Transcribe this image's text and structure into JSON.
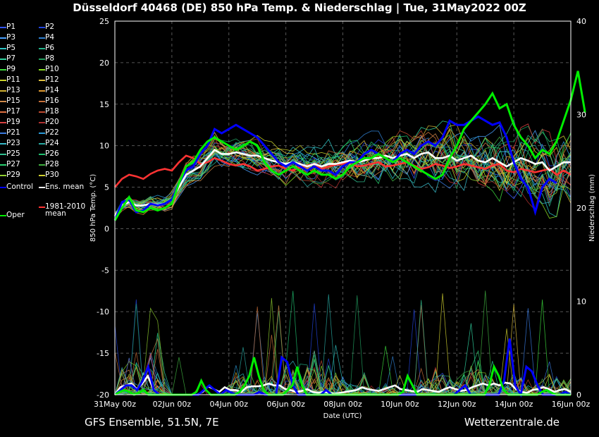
{
  "title": "Düsseldorf 40468 (DE)  850 hPa Temp. & Niederschlag | Tue, 31May2022 00Z",
  "footer": {
    "left": "GFS Ensemble, 51.5N, 7E",
    "right": "Wetterzentrale.de"
  },
  "legend": [
    {
      "label": "P1",
      "color": "#3355ff"
    },
    {
      "label": "P2",
      "color": "#2244dd"
    },
    {
      "label": "P3",
      "color": "#4aa0ff"
    },
    {
      "label": "P4",
      "color": "#2f7fd0"
    },
    {
      "label": "P5",
      "color": "#2ec5c5"
    },
    {
      "label": "P6",
      "color": "#22b38a"
    },
    {
      "label": "P7",
      "color": "#2fd3a0"
    },
    {
      "label": "P8",
      "color": "#22a060"
    },
    {
      "label": "P9",
      "color": "#3cdc3c"
    },
    {
      "label": "P10",
      "color": "#88dd22"
    },
    {
      "label": "P11",
      "color": "#c8d22a"
    },
    {
      "label": "P12",
      "color": "#e0c040"
    },
    {
      "label": "P13",
      "color": "#d0b030"
    },
    {
      "label": "P14",
      "color": "#e09a30"
    },
    {
      "label": "P15",
      "color": "#d08a4a"
    },
    {
      "label": "P16",
      "color": "#c8703a"
    },
    {
      "label": "P17",
      "color": "#e07040"
    },
    {
      "label": "P18",
      "color": "#c04a30"
    },
    {
      "label": "P19",
      "color": "#d84040"
    },
    {
      "label": "P20",
      "color": "#b03030"
    },
    {
      "label": "P21",
      "color": "#3a7ae0"
    },
    {
      "label": "P22",
      "color": "#2a9ad8"
    },
    {
      "label": "P23",
      "color": "#36b8c8"
    },
    {
      "label": "P24",
      "color": "#28a8a0"
    },
    {
      "label": "P25",
      "color": "#30c090"
    },
    {
      "label": "P26",
      "color": "#20c070"
    },
    {
      "label": "P27",
      "color": "#28d070"
    },
    {
      "label": "P28",
      "color": "#40b040"
    },
    {
      "label": "P29",
      "color": "#90d030"
    },
    {
      "label": "P30",
      "color": "#d0d030"
    },
    {
      "label": "Control",
      "color": "#0000ff"
    },
    {
      "label": "Ens. mean",
      "color": "#ffffff"
    },
    {
      "label": "1981-2010\nmean",
      "color": "#ff3333"
    },
    {
      "label": "Oper",
      "color": "#00ee00"
    }
  ],
  "chart_data": {
    "type": "line",
    "xlabel": "Date (UTC)",
    "ylabel_left": "850 hPa Temp. (°C)",
    "ylabel_right": "Niederschlag (mm)",
    "ylim_left": [
      -20,
      25
    ],
    "ylim_right": [
      0,
      40
    ],
    "x_ticks": [
      "31May 00z",
      "02Jun 00z",
      "04Jun 00z",
      "06Jun 00z",
      "08Jun 00z",
      "10Jun 00z",
      "12Jun 00z",
      "14Jun 00z",
      "16Jun 00z"
    ],
    "y_ticks_left": [
      "25",
      "20",
      "15",
      "10",
      "5",
      "0",
      "-5",
      "-10",
      "-15",
      "-20"
    ],
    "y_ticks_right": [
      "40",
      "30",
      "20",
      "10",
      "0"
    ],
    "grid": true,
    "time_step_hours": 6,
    "series": [
      {
        "name": "Control",
        "axis": "left",
        "values": [
          1.0,
          3.2,
          3.5,
          2.0,
          2.2,
          3.0,
          2.8,
          3.0,
          3.5,
          5.5,
          7.0,
          7.5,
          9.0,
          10.0,
          12.0,
          11.5,
          12.0,
          12.5,
          12.0,
          11.5,
          11.0,
          10.0,
          9.0,
          8.0,
          7.5,
          8.0,
          7.5,
          7.0,
          7.5,
          7.0,
          7.0,
          6.5,
          7.5,
          8.0,
          8.0,
          9.0,
          9.5,
          9.0,
          8.5,
          8.0,
          9.0,
          9.5,
          9.0,
          10.0,
          10.5,
          10.0,
          11.0,
          13.0,
          12.5,
          12.5,
          13.0,
          13.5,
          13.0,
          12.5,
          12.8,
          11.0,
          8.0,
          6.0,
          5.0,
          2.0,
          5.0,
          6.0,
          5.5
        ]
      },
      {
        "name": "Oper",
        "axis": "left",
        "values": [
          1.0,
          2.5,
          3.8,
          2.2,
          2.0,
          2.5,
          2.2,
          2.5,
          3.0,
          5.5,
          7.5,
          8.0,
          9.5,
          10.5,
          11.0,
          10.5,
          10.0,
          9.5,
          10.0,
          10.5,
          10.0,
          8.0,
          7.0,
          6.5,
          7.0,
          7.5,
          7.0,
          6.5,
          7.0,
          6.5,
          6.5,
          6.0,
          6.5,
          7.5,
          8.0,
          8.5,
          8.5,
          9.0,
          8.5,
          8.0,
          8.5,
          8.0,
          7.5,
          7.0,
          6.5,
          6.0,
          6.5,
          8.5,
          10.0,
          12.0,
          13.0,
          14.0,
          15.0,
          16.3,
          14.5,
          15.0,
          12.5,
          11.0,
          10.0,
          8.5,
          9.5,
          9.0,
          10.5,
          13.0,
          15.5,
          19.0,
          14.0
        ]
      },
      {
        "name": "Ens. mean",
        "axis": "left",
        "values": [
          1.5,
          2.8,
          3.2,
          2.8,
          2.8,
          3.0,
          2.9,
          3.0,
          3.5,
          5.0,
          6.5,
          7.0,
          7.5,
          8.5,
          9.5,
          9.0,
          9.0,
          9.2,
          9.0,
          8.8,
          8.8,
          8.5,
          8.2,
          8.0,
          7.8,
          8.0,
          7.8,
          7.5,
          7.8,
          7.5,
          7.8,
          7.8,
          8.0,
          8.2,
          8.0,
          8.2,
          8.5,
          8.5,
          8.8,
          8.5,
          8.8,
          9.0,
          8.5,
          9.0,
          9.2,
          8.5,
          8.5,
          8.8,
          8.2,
          8.5,
          8.8,
          8.2,
          8.0,
          8.5,
          8.0,
          7.5,
          8.0,
          8.5,
          8.2,
          7.8,
          8.0,
          7.0,
          7.5,
          8.0,
          8.0
        ]
      },
      {
        "name": "1981-2010\nmean",
        "axis": "left",
        "values": [
          5.0,
          6.0,
          6.5,
          6.3,
          6.0,
          6.6,
          7.0,
          7.2,
          7.0,
          8.0,
          8.8,
          8.5,
          7.8,
          8.0,
          8.5,
          8.2,
          7.8,
          7.6,
          7.8,
          7.5,
          7.0,
          7.2,
          7.5,
          7.6,
          7.2,
          7.0,
          7.4,
          7.6,
          7.8,
          7.2,
          7.5,
          7.7,
          7.8,
          8.0,
          7.5,
          7.6,
          7.8,
          8.0,
          7.5,
          7.6,
          7.8,
          8.0,
          7.6,
          7.2,
          7.4,
          7.8,
          7.6,
          7.3,
          7.5,
          7.8,
          7.6,
          7.4,
          7.2,
          7.6,
          7.8,
          7.0,
          6.8,
          7.2,
          7.0,
          6.8,
          7.0,
          7.2,
          6.5,
          7.0,
          6.5
        ]
      },
      {
        "name": "Control",
        "axis": "right",
        "values": [
          0,
          0.5,
          1.0,
          1.0,
          0.5,
          1.5,
          3.0,
          0.5,
          0,
          0,
          0,
          0,
          0,
          0,
          0,
          0,
          0.5,
          1.0,
          0.5,
          0,
          0.5,
          0.2,
          0,
          0,
          0,
          0,
          0.3,
          0,
          0,
          0,
          4.0,
          3.5,
          1.0,
          0,
          0,
          0,
          0,
          0,
          0.5,
          0,
          0,
          0,
          0,
          0,
          0,
          0,
          0,
          0,
          0,
          0,
          0,
          0,
          0,
          0,
          0,
          0,
          0,
          0,
          0,
          0,
          0,
          0,
          0.5,
          1.0,
          0,
          0,
          0,
          0,
          0,
          0,
          1.5,
          6.0,
          1.0,
          0,
          3.0,
          2.5,
          1.0,
          0,
          0,
          0,
          0,
          0.3,
          0
        ]
      },
      {
        "name": "Oper",
        "axis": "right",
        "values": [
          0,
          0.3,
          0.5,
          0.3,
          0,
          0.2,
          0.5,
          0,
          0,
          0,
          0,
          0,
          0,
          0,
          0,
          0,
          0,
          0.3,
          1.5,
          0.5,
          0,
          0,
          0,
          0,
          0,
          0,
          0.3,
          1.0,
          2.0,
          4.0,
          2.0,
          0.5,
          0,
          0,
          0,
          0,
          0.5,
          1.0,
          3.0,
          1.0,
          0,
          0,
          0,
          0,
          0,
          0,
          0,
          0,
          0,
          0,
          0,
          0,
          0,
          0,
          0,
          0,
          0,
          0,
          0,
          0,
          0.3,
          2.0,
          1.0,
          0,
          0,
          0,
          0,
          0,
          0,
          0,
          0,
          0,
          0,
          0,
          0,
          0,
          0,
          0,
          1.0,
          3.0,
          2.0,
          0.5,
          0,
          0,
          0,
          0,
          0,
          0,
          0,
          0.3,
          0.5,
          0.2,
          0,
          0,
          0,
          0
        ]
      },
      {
        "name": "Ens. mean",
        "axis": "right",
        "values": [
          0,
          0.8,
          1.0,
          1.2,
          0.6,
          1.2,
          2.0,
          0.6,
          0,
          0,
          0,
          0,
          0,
          0,
          0,
          0,
          0.3,
          0.9,
          0.6,
          0.3,
          0.8,
          0.5,
          0.5,
          0.3,
          0.8,
          0.9,
          0.9,
          1.0,
          1.2,
          1.0,
          1.0,
          0.6,
          0.5,
          0.3,
          0.4,
          0.6,
          0.3,
          0.2,
          0.3,
          0.2,
          0.1,
          0.2,
          0.3,
          0.4,
          0.5,
          0.8,
          0.6,
          0.5,
          0.4,
          0.6,
          0.8,
          1.0,
          0.6,
          0.5,
          0.4,
          0.3,
          0.6,
          0.5,
          0.4,
          0.3,
          0.6,
          0.8,
          0.6,
          0.4,
          0.5,
          0.8,
          1.0,
          1.2,
          1.0,
          1.2,
          1.0,
          1.3,
          1.2,
          0.6,
          0.3,
          0.2,
          0.5,
          0.6,
          0.8,
          0.6,
          0.3,
          0.5,
          0.6,
          0.3
        ]
      }
    ]
  }
}
